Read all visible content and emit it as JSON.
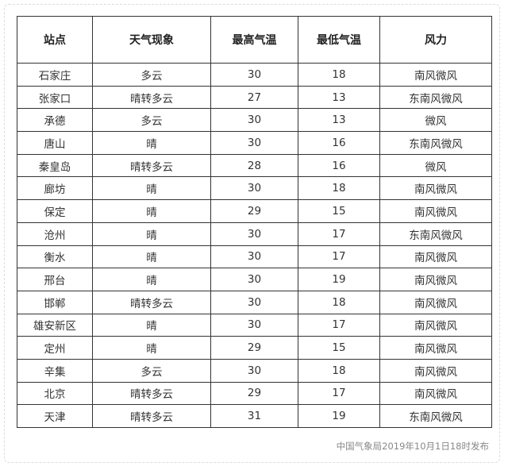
{
  "headers": [
    "站点",
    "天气现象",
    "最高气温",
    "最低气温",
    "风力"
  ],
  "rows": [
    [
      "石家庄",
      "多云",
      "30",
      "18",
      "南风微风"
    ],
    [
      "张家口",
      "晴转多云",
      "27",
      "13",
      "东南风微风"
    ],
    [
      "承德",
      "多云",
      "30",
      "13",
      "微风"
    ],
    [
      "唐山",
      "晴",
      "30",
      "16",
      "东南风微风"
    ],
    [
      "秦皇岛",
      "晴转多云",
      "28",
      "16",
      "微风"
    ],
    [
      "廊坊",
      "晴",
      "30",
      "18",
      "南风微风"
    ],
    [
      "保定",
      "晴",
      "29",
      "15",
      "南风微风"
    ],
    [
      "沧州",
      "晴",
      "30",
      "17",
      "东南风微风"
    ],
    [
      "衡水",
      "晴",
      "30",
      "17",
      "南风微风"
    ],
    [
      "邢台",
      "晴",
      "30",
      "19",
      "南风微风"
    ],
    [
      "邯郸",
      "晴转多云",
      "30",
      "18",
      "南风微风"
    ],
    [
      "雄安新区",
      "晴",
      "30",
      "17",
      "南风微风"
    ],
    [
      "定州",
      "晴",
      "29",
      "15",
      "南风微风"
    ],
    [
      "辛集",
      "多云",
      "30",
      "18",
      "南风微风"
    ],
    [
      "北京",
      "晴转多云",
      "29",
      "17",
      "南风微风"
    ],
    [
      "天津",
      "晴转多云",
      "31",
      "19",
      "东南风微风"
    ]
  ],
  "footer": "中国气象局2019年10月1日18时发布"
}
